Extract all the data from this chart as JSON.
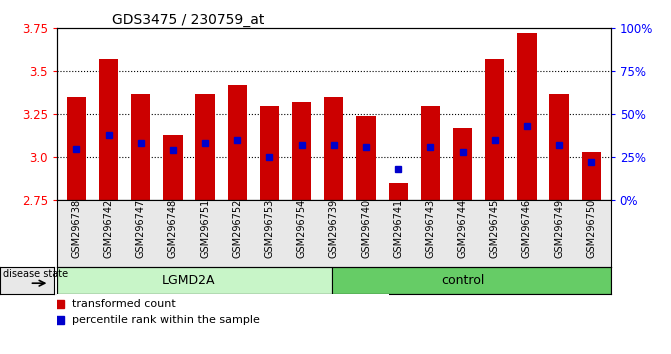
{
  "title": "GDS3475 / 230759_at",
  "samples": [
    "GSM296738",
    "GSM296742",
    "GSM296747",
    "GSM296748",
    "GSM296751",
    "GSM296752",
    "GSM296753",
    "GSM296754",
    "GSM296739",
    "GSM296740",
    "GSM296741",
    "GSM296743",
    "GSM296744",
    "GSM296745",
    "GSM296746",
    "GSM296749",
    "GSM296750"
  ],
  "bar_values": [
    3.35,
    3.57,
    3.37,
    3.13,
    3.37,
    3.42,
    3.3,
    3.32,
    3.35,
    3.24,
    2.85,
    3.3,
    3.17,
    3.57,
    3.72,
    3.37,
    3.03
  ],
  "blue_dot_values": [
    3.05,
    3.13,
    3.08,
    3.04,
    3.08,
    3.1,
    3.0,
    3.07,
    3.07,
    3.06,
    2.93,
    3.06,
    3.03,
    3.1,
    3.18,
    3.07,
    2.97
  ],
  "bar_color": "#CC0000",
  "blue_dot_color": "#0000CC",
  "ymin": 2.75,
  "ymax": 3.75,
  "yticks": [
    2.75,
    3.0,
    3.25,
    3.5,
    3.75
  ],
  "right_yticks": [
    0,
    25,
    50,
    75,
    100
  ],
  "right_ytick_labels": [
    "0%",
    "25%",
    "50%",
    "75%",
    "100%"
  ],
  "lgmd2a_count": 8,
  "control_count": 9,
  "background_color": "#e8e8e8",
  "plot_bg_color": "#ffffff",
  "legend_items": [
    "transformed count",
    "percentile rank within the sample"
  ],
  "disease_state_label": "disease state"
}
